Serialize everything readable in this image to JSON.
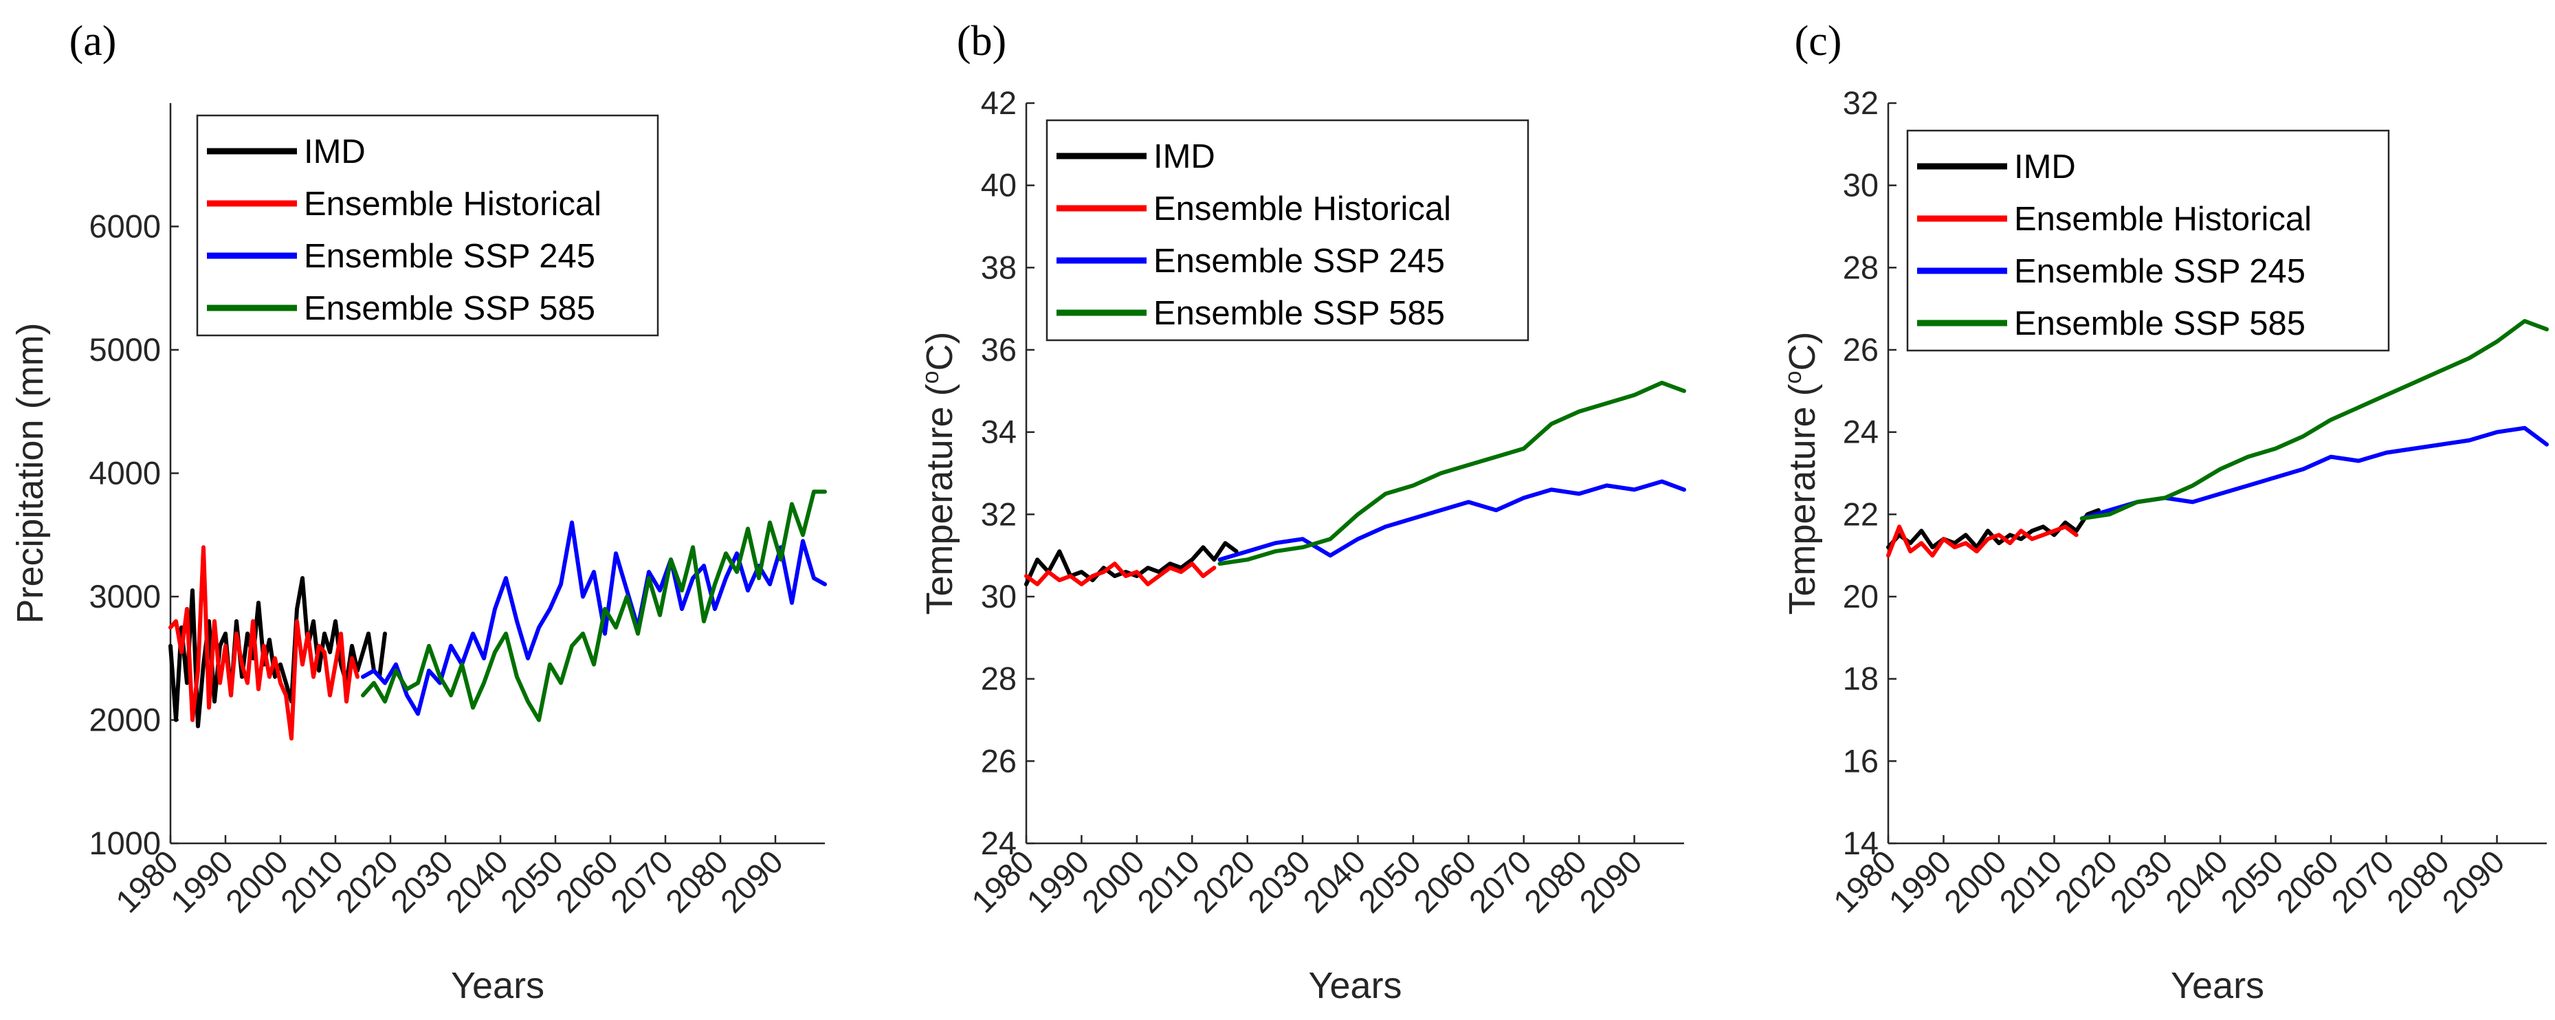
{
  "chart_data": [
    {
      "panel_label": "(a)",
      "type": "line",
      "xlabel": "Years",
      "ylabel": "Precipitation (mm)",
      "xlim": [
        1980,
        2099
      ],
      "ylim": [
        1000,
        7000
      ],
      "yticks": [
        1000,
        2000,
        3000,
        4000,
        5000,
        6000
      ],
      "xticks": [
        1980,
        1990,
        2000,
        2010,
        2020,
        2030,
        2040,
        2050,
        2060,
        2070,
        2080,
        2090
      ],
      "series": [
        {
          "name": "IMD",
          "color": "#000000",
          "x": [
            1980,
            1981,
            1982,
            1983,
            1984,
            1985,
            1986,
            1987,
            1988,
            1989,
            1990,
            1991,
            1992,
            1993,
            1994,
            1995,
            1996,
            1997,
            1998,
            1999,
            2000,
            2001,
            2002,
            2003,
            2004,
            2005,
            2006,
            2007,
            2008,
            2009,
            2010,
            2011,
            2012,
            2013,
            2014,
            2015,
            2016,
            2017,
            2018,
            2019
          ],
          "y": [
            2600,
            2000,
            2750,
            2300,
            3050,
            1950,
            2450,
            2800,
            2150,
            2600,
            2700,
            2200,
            2800,
            2350,
            2700,
            2500,
            2950,
            2450,
            2650,
            2350,
            2450,
            2300,
            2150,
            2900,
            3150,
            2600,
            2800,
            2400,
            2700,
            2550,
            2800,
            2450,
            2300,
            2600,
            2400,
            2550,
            2700,
            2400,
            2350,
            2700
          ]
        },
        {
          "name": "Ensemble Historical",
          "color": "#ff0000",
          "x": [
            1980,
            1981,
            1982,
            1983,
            1984,
            1985,
            1986,
            1987,
            1988,
            1989,
            1990,
            1991,
            1992,
            1993,
            1994,
            1995,
            1996,
            1997,
            1998,
            1999,
            2000,
            2001,
            2002,
            2003,
            2004,
            2005,
            2006,
            2007,
            2008,
            2009,
            2010,
            2011,
            2012,
            2013,
            2014
          ],
          "y": [
            2750,
            2800,
            2550,
            2900,
            2000,
            2400,
            3400,
            2100,
            2800,
            2300,
            2600,
            2200,
            2700,
            2450,
            2300,
            2800,
            2250,
            2600,
            2350,
            2500,
            2300,
            2200,
            1850,
            2800,
            2450,
            2700,
            2350,
            2600,
            2550,
            2200,
            2450,
            2700,
            2150,
            2500,
            2350
          ]
        },
        {
          "name": "Ensemble SSP 245",
          "color": "#0000ff",
          "x": [
            2015,
            2017,
            2019,
            2021,
            2023,
            2025,
            2027,
            2029,
            2031,
            2033,
            2035,
            2037,
            2039,
            2041,
            2043,
            2045,
            2047,
            2049,
            2051,
            2053,
            2055,
            2057,
            2059,
            2061,
            2063,
            2065,
            2067,
            2069,
            2071,
            2073,
            2075,
            2077,
            2079,
            2081,
            2083,
            2085,
            2087,
            2089,
            2091,
            2093,
            2095,
            2097,
            2099
          ],
          "y": [
            2350,
            2400,
            2300,
            2450,
            2200,
            2050,
            2400,
            2300,
            2600,
            2450,
            2700,
            2500,
            2900,
            3150,
            2800,
            2500,
            2750,
            2900,
            3100,
            3600,
            3000,
            3200,
            2700,
            3350,
            3050,
            2750,
            3200,
            3050,
            3300,
            2900,
            3150,
            3250,
            2900,
            3150,
            3350,
            3050,
            3250,
            3100,
            3400,
            2950,
            3450,
            3150,
            3100
          ]
        },
        {
          "name": "Ensemble SSP 585",
          "color": "#007000",
          "x": [
            2015,
            2017,
            2019,
            2021,
            2023,
            2025,
            2027,
            2029,
            2031,
            2033,
            2035,
            2037,
            2039,
            2041,
            2043,
            2045,
            2047,
            2049,
            2051,
            2053,
            2055,
            2057,
            2059,
            2061,
            2063,
            2065,
            2067,
            2069,
            2071,
            2073,
            2075,
            2077,
            2079,
            2081,
            2083,
            2085,
            2087,
            2089,
            2091,
            2093,
            2095,
            2097,
            2099
          ],
          "y": [
            2200,
            2300,
            2150,
            2400,
            2250,
            2300,
            2600,
            2350,
            2200,
            2450,
            2100,
            2300,
            2550,
            2700,
            2350,
            2150,
            2000,
            2450,
            2300,
            2600,
            2700,
            2450,
            2900,
            2750,
            3000,
            2700,
            3150,
            2850,
            3300,
            3050,
            3400,
            2800,
            3100,
            3350,
            3200,
            3550,
            3150,
            3600,
            3300,
            3750,
            3500,
            3850,
            3850
          ]
        }
      ],
      "legend": [
        "IMD",
        "Ensemble Historical",
        "Ensemble SSP 245",
        "Ensemble SSP 585"
      ],
      "legend_position": "top-left"
    },
    {
      "panel_label": "(b)",
      "type": "line",
      "xlabel": "Years",
      "ylabel": "Temperature (°C)",
      "ylabel_main": "Temperature (",
      "ylabel_sup": "o",
      "ylabel_end": "C)",
      "xlim": [
        1980,
        2099
      ],
      "ylim": [
        24,
        42
      ],
      "yticks": [
        24,
        26,
        28,
        30,
        32,
        34,
        36,
        38,
        40,
        42
      ],
      "xticks": [
        1980,
        1990,
        2000,
        2010,
        2020,
        2030,
        2040,
        2050,
        2060,
        2070,
        2080,
        2090
      ],
      "series": [
        {
          "name": "IMD",
          "color": "#000000",
          "x": [
            1980,
            1982,
            1984,
            1986,
            1988,
            1990,
            1992,
            1994,
            1996,
            1998,
            2000,
            2002,
            2004,
            2006,
            2008,
            2010,
            2012,
            2014,
            2016,
            2018
          ],
          "y": [
            30.3,
            30.9,
            30.6,
            31.1,
            30.5,
            30.6,
            30.4,
            30.7,
            30.5,
            30.6,
            30.5,
            30.7,
            30.6,
            30.8,
            30.7,
            30.9,
            31.2,
            30.9,
            31.3,
            31.1
          ]
        },
        {
          "name": "Ensemble Historical",
          "color": "#ff0000",
          "x": [
            1980,
            1982,
            1984,
            1986,
            1988,
            1990,
            1992,
            1994,
            1996,
            1998,
            2000,
            2002,
            2004,
            2006,
            2008,
            2010,
            2012,
            2014
          ],
          "y": [
            30.5,
            30.3,
            30.6,
            30.4,
            30.5,
            30.3,
            30.5,
            30.6,
            30.8,
            30.5,
            30.6,
            30.3,
            30.5,
            30.7,
            30.6,
            30.8,
            30.5,
            30.7
          ]
        },
        {
          "name": "Ensemble SSP 245",
          "color": "#0000ff",
          "x": [
            2015,
            2020,
            2025,
            2030,
            2035,
            2040,
            2045,
            2050,
            2055,
            2060,
            2065,
            2070,
            2075,
            2080,
            2085,
            2090,
            2095,
            2099
          ],
          "y": [
            30.9,
            31.1,
            31.3,
            31.4,
            31.0,
            31.4,
            31.7,
            31.9,
            32.1,
            32.3,
            32.1,
            32.4,
            32.6,
            32.5,
            32.7,
            32.6,
            32.8,
            32.6
          ]
        },
        {
          "name": "Ensemble SSP 585",
          "color": "#007000",
          "x": [
            2015,
            2020,
            2025,
            2030,
            2035,
            2040,
            2045,
            2050,
            2055,
            2060,
            2065,
            2070,
            2075,
            2080,
            2085,
            2090,
            2095,
            2099
          ],
          "y": [
            30.8,
            30.9,
            31.1,
            31.2,
            31.4,
            32.0,
            32.5,
            32.7,
            33.0,
            33.2,
            33.4,
            33.6,
            34.2,
            34.5,
            34.7,
            34.9,
            35.2,
            35.0
          ]
        }
      ],
      "legend": [
        "IMD",
        "Ensemble Historical",
        "Ensemble SSP 245",
        "Ensemble SSP 585"
      ],
      "legend_position": "top-left"
    },
    {
      "panel_label": "(c)",
      "type": "line",
      "xlabel": "Years",
      "ylabel": "Temperature (°C)",
      "ylabel_main": "Temperature (",
      "ylabel_sup": "o",
      "ylabel_end": "C)",
      "xlim": [
        1980,
        2099
      ],
      "ylim": [
        14,
        32
      ],
      "yticks": [
        14,
        16,
        18,
        20,
        22,
        24,
        26,
        28,
        30,
        32
      ],
      "xticks": [
        1980,
        1990,
        2000,
        2010,
        2020,
        2030,
        2040,
        2050,
        2060,
        2070,
        2080,
        2090
      ],
      "series": [
        {
          "name": "IMD",
          "color": "#000000",
          "x": [
            1980,
            1982,
            1984,
            1986,
            1988,
            1990,
            1992,
            1994,
            1996,
            1998,
            2000,
            2002,
            2004,
            2006,
            2008,
            2010,
            2012,
            2014,
            2016,
            2018
          ],
          "y": [
            21.2,
            21.5,
            21.3,
            21.6,
            21.2,
            21.4,
            21.3,
            21.5,
            21.2,
            21.6,
            21.3,
            21.5,
            21.4,
            21.6,
            21.7,
            21.5,
            21.8,
            21.6,
            22.0,
            22.1
          ]
        },
        {
          "name": "Ensemble Historical",
          "color": "#ff0000",
          "x": [
            1980,
            1982,
            1984,
            1986,
            1988,
            1990,
            1992,
            1994,
            1996,
            1998,
            2000,
            2002,
            2004,
            2006,
            2008,
            2010,
            2012,
            2014
          ],
          "y": [
            21.0,
            21.7,
            21.1,
            21.3,
            21.0,
            21.4,
            21.2,
            21.3,
            21.1,
            21.4,
            21.5,
            21.3,
            21.6,
            21.4,
            21.5,
            21.6,
            21.7,
            21.5
          ]
        },
        {
          "name": "Ensemble SSP 245",
          "color": "#0000ff",
          "x": [
            2015,
            2020,
            2025,
            2030,
            2035,
            2040,
            2045,
            2050,
            2055,
            2060,
            2065,
            2070,
            2075,
            2080,
            2085,
            2090,
            2095,
            2099
          ],
          "y": [
            21.9,
            22.1,
            22.3,
            22.4,
            22.3,
            22.5,
            22.7,
            22.9,
            23.1,
            23.4,
            23.3,
            23.5,
            23.6,
            23.7,
            23.8,
            24.0,
            24.1,
            23.7
          ]
        },
        {
          "name": "Ensemble SSP 585",
          "color": "#007000",
          "x": [
            2015,
            2020,
            2025,
            2030,
            2035,
            2040,
            2045,
            2050,
            2055,
            2060,
            2065,
            2070,
            2075,
            2080,
            2085,
            2090,
            2095,
            2099
          ],
          "y": [
            21.9,
            22.0,
            22.3,
            22.4,
            22.7,
            23.1,
            23.4,
            23.6,
            23.9,
            24.3,
            24.6,
            24.9,
            25.2,
            25.5,
            25.8,
            26.2,
            26.7,
            26.5
          ]
        }
      ],
      "legend": [
        "IMD",
        "Ensemble Historical",
        "Ensemble SSP 245",
        "Ensemble SSP 585"
      ],
      "legend_position": "top-left"
    }
  ]
}
